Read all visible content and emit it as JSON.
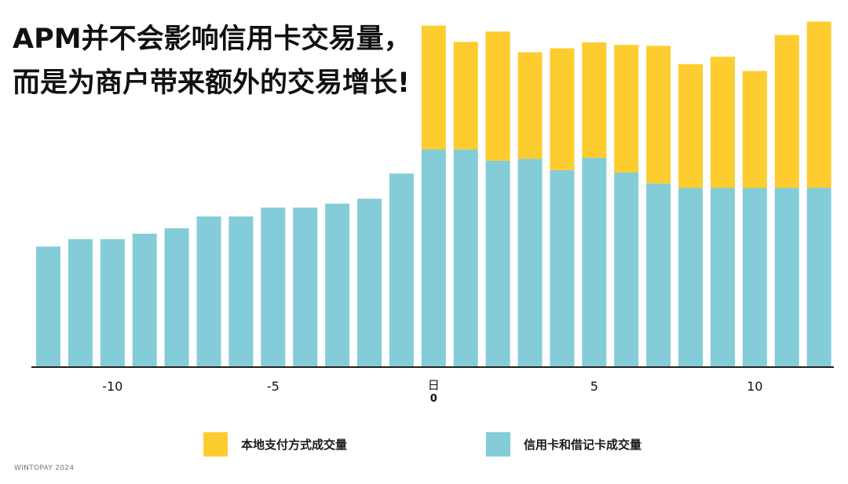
{
  "title_lines": [
    "APM并不会影响信用卡交易量，",
    "而是为商户带来额外的交易增长!"
  ],
  "footer": "WINTOPAY 2024",
  "colors": {
    "card": "#85ccd9",
    "local": "#fdcd2f",
    "axis": "#222222",
    "text": "#111111"
  },
  "chart_data": {
    "type": "bar",
    "stacked": true,
    "x": [
      -12,
      -11,
      -10,
      -9,
      -8,
      -7,
      -6,
      -5,
      -4,
      -3,
      -2,
      -1,
      0,
      1,
      2,
      3,
      4,
      5,
      6,
      7,
      8,
      9,
      10,
      11,
      12
    ],
    "series": [
      {
        "name": "信用卡和借记卡成交量",
        "color": "#85ccd9",
        "values": [
          24.3,
          25.8,
          25.8,
          26.9,
          28,
          30.4,
          30.4,
          32.2,
          32.2,
          33,
          34,
          39.1,
          44,
          44,
          41.7,
          42.1,
          39.8,
          42.3,
          39.3,
          37.1,
          36.2,
          36.2,
          36.2,
          36.2,
          36.2
        ]
      },
      {
        "name": "本地支付方式成交量",
        "color": "#fdcd2f",
        "values": [
          0,
          0,
          0,
          0,
          0,
          0,
          0,
          0,
          0,
          0,
          0,
          0,
          25.1,
          21.8,
          26.2,
          21.6,
          24.7,
          23.4,
          25.9,
          27.9,
          25.1,
          26.6,
          23.7,
          31,
          33.7
        ]
      }
    ],
    "xticks": [
      {
        "x": -10,
        "label": "-10"
      },
      {
        "x": -5,
        "label": "-5"
      },
      {
        "x": 0,
        "label": "日",
        "sublabel": "0"
      },
      {
        "x": 5,
        "label": "5"
      },
      {
        "x": 10,
        "label": "10"
      }
    ],
    "ylim": [
      0,
      70
    ],
    "legend": [
      {
        "label": "本地支付方式成交量",
        "color": "#fdcd2f"
      },
      {
        "label": "信用卡和借记卡成交量",
        "color": "#85ccd9"
      }
    ],
    "legend_position": "bottom",
    "grid": false
  }
}
